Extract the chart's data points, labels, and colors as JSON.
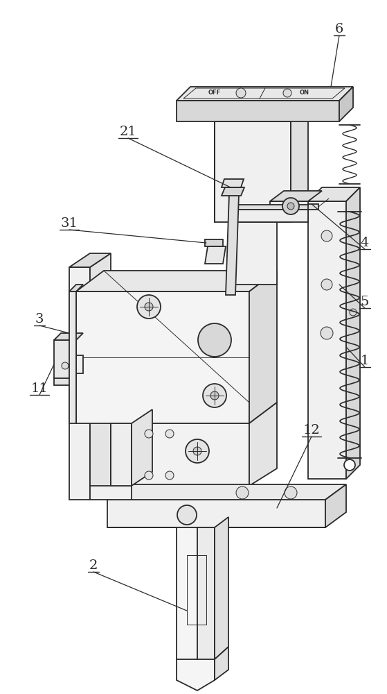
{
  "bg_color": "#ffffff",
  "line_color": "#2a2a2a",
  "line_width": 1.3,
  "thin_line": 0.7,
  "label_fontsize": 13,
  "figsize": [
    5.59,
    10.0
  ],
  "dpi": 100
}
